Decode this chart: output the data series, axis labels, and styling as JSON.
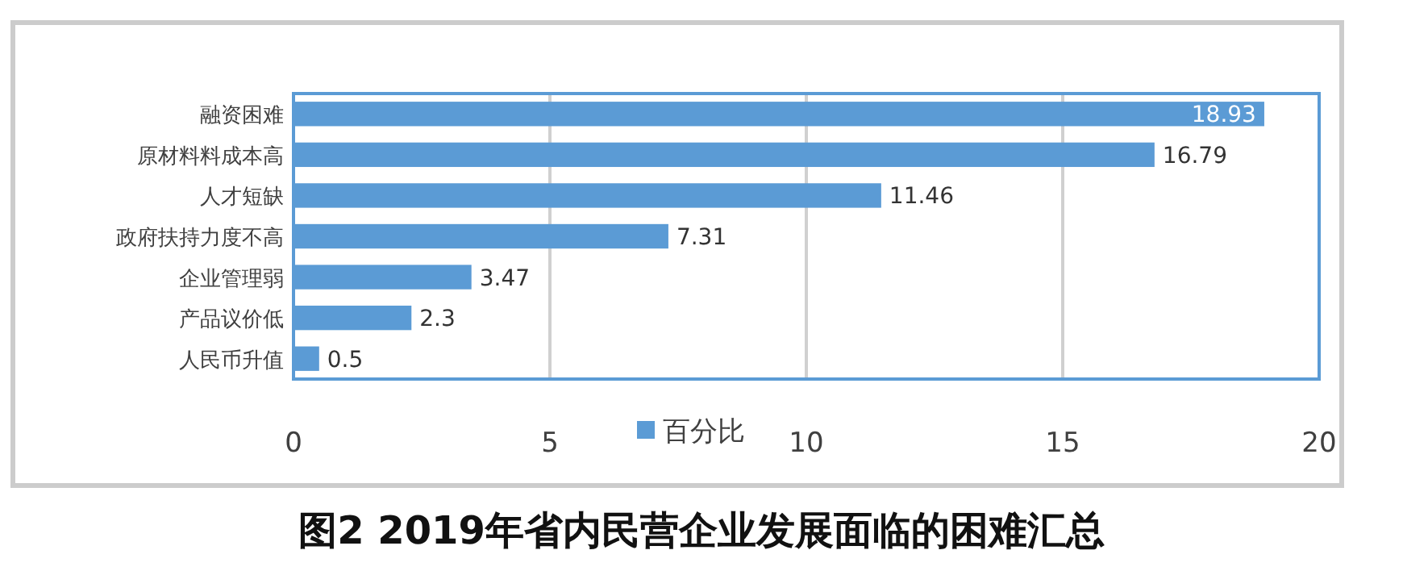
{
  "chart_data": {
    "type": "bar",
    "orientation": "horizontal",
    "title": "图2  2019年省内民营企业发展面临的困难汇总",
    "categories": [
      "融资困难",
      "原材料料成本高",
      "人才短缺",
      "政府扶持力度不高",
      "企业管理弱",
      "产品议价低",
      "人民币升值"
    ],
    "series": [
      {
        "name": "百分比",
        "color": "#5b9bd5",
        "values": [
          18.93,
          16.79,
          11.46,
          7.31,
          3.47,
          2.3,
          0.5
        ]
      }
    ],
    "xlim": [
      0,
      20
    ],
    "xticks": [
      0,
      5,
      10,
      15,
      20
    ],
    "grid": "x",
    "legend": "bottom",
    "data_labels": true
  }
}
